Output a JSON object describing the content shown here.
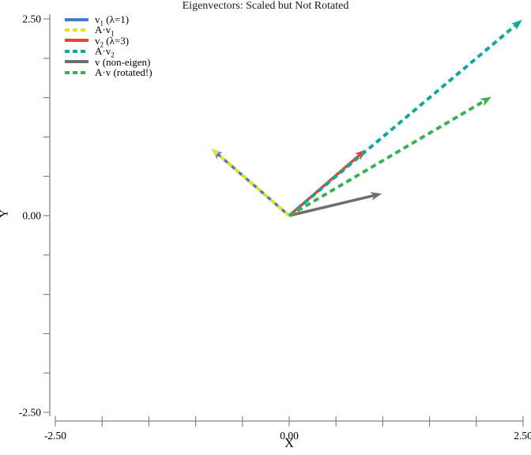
{
  "page": {
    "background": "#ffffff",
    "text_color": "#000000",
    "axis_color": "#848484"
  },
  "chart_data": {
    "type": "quiver",
    "title": "Eigenvectors: Scaled but Not Rotated",
    "xlabel": "X",
    "ylabel": "Y",
    "xlim": [
      -2.5,
      2.5
    ],
    "ylim": [
      -2.5,
      2.5
    ],
    "grid": false,
    "legend_position": "top-left",
    "x_ticks": {
      "minor_step": 0.5,
      "labels": [
        {
          "value": -2.5,
          "label": "-2.50"
        },
        {
          "value": 0,
          "label": "0.00"
        },
        {
          "value": 2.5,
          "label": "2.50"
        }
      ]
    },
    "y_ticks": {
      "minor_step": 0.5,
      "labels": [
        {
          "value": 2.5,
          "label": "2.50"
        },
        {
          "value": 0,
          "label": "0.00"
        },
        {
          "value": -2.5,
          "label": "-2.50"
        }
      ]
    },
    "vectors": [
      {
        "name": "v1",
        "legend_base": "v",
        "legend_sub": "1",
        "legend_rest": " (λ=1)",
        "from": [
          0,
          0
        ],
        "to": [
          -0.83,
          0.85
        ],
        "color": "#4878d0",
        "style": "solid",
        "head_scale": 1.0
      },
      {
        "name": "A·v1",
        "legend_base": "A·v",
        "legend_sub": "1",
        "legend_rest": "",
        "from": [
          0,
          0
        ],
        "to": [
          -0.83,
          0.85
        ],
        "color": "#dfe32b",
        "style": "dashed",
        "head_scale": 0.8
      },
      {
        "name": "v2",
        "legend_base": "v",
        "legend_sub": "2",
        "legend_rest": " (λ=3)",
        "from": [
          0,
          0
        ],
        "to": [
          0.82,
          0.84
        ],
        "color": "#e8432f",
        "style": "solid",
        "head_scale": 1.0
      },
      {
        "name": "A·v2",
        "legend_base": "A·v",
        "legend_sub": "2",
        "legend_rest": "",
        "from": [
          0,
          0
        ],
        "to": [
          2.49,
          2.49
        ],
        "color": "#12a79d",
        "style": "dashed",
        "head_scale": 1.0
      },
      {
        "name": "v",
        "legend_base": "v",
        "legend_sub": "",
        "legend_rest": " (non-eigen)",
        "from": [
          0,
          0
        ],
        "to": [
          0.99,
          0.28
        ],
        "color": "#6e6e6e",
        "style": "solid",
        "head_scale": 1.0
      },
      {
        "name": "A·v",
        "legend_base": "A·v",
        "legend_sub": "",
        "legend_rest": " (rotated!)",
        "from": [
          0,
          0
        ],
        "to": [
          2.16,
          1.51
        ],
        "color": "#3cae54",
        "style": "dashed",
        "head_scale": 1.0
      }
    ]
  }
}
